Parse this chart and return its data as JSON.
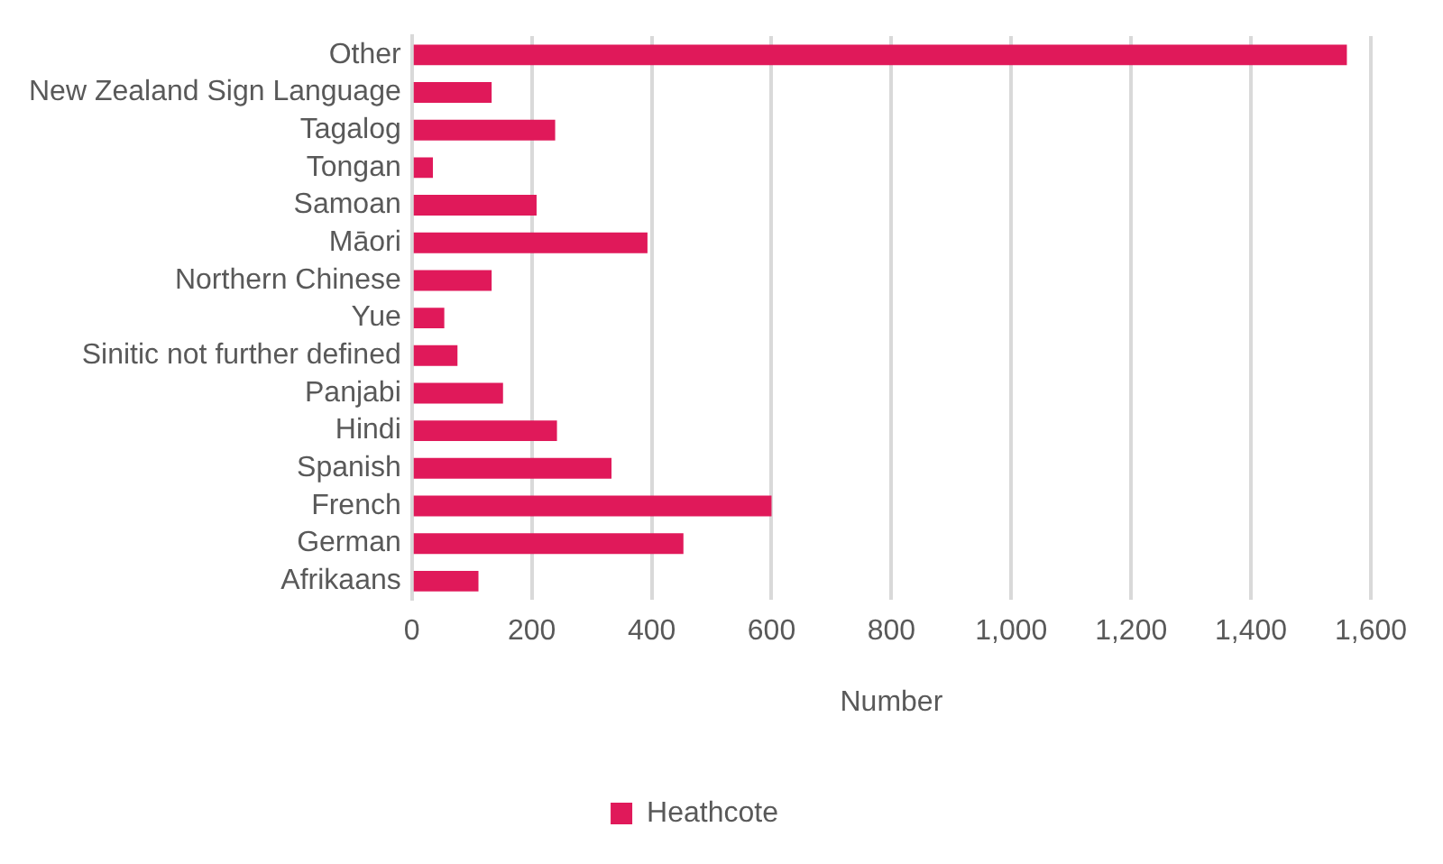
{
  "chart_data": {
    "type": "bar",
    "orientation": "horizontal",
    "xlabel": "Number",
    "categories": [
      "Other",
      "New Zealand Sign Language",
      "Tagalog",
      "Tongan",
      "Samoan",
      "Māori",
      "Northern Chinese",
      "Yue",
      "Sinitic not further defined",
      "Panjabi",
      "Hindi",
      "Spanish",
      "French",
      "German",
      "Afrikaans"
    ],
    "series": [
      {
        "name": "Heathcote",
        "color": "#e0195a",
        "values": [
          1560,
          133,
          239,
          35,
          208,
          393,
          133,
          54,
          76,
          152,
          242,
          333,
          600,
          453,
          111
        ]
      }
    ],
    "xlim": [
      0,
      1600
    ],
    "xticks": [
      0,
      {
        "value": 200,
        "label": "200"
      },
      {
        "value": 400,
        "label": "400"
      },
      {
        "value": 600,
        "label": "600"
      },
      {
        "value": 800,
        "label": "800"
      },
      {
        "value": 1000,
        "label": "1,000"
      },
      {
        "value": 1200,
        "label": "1,200"
      },
      {
        "value": 1400,
        "label": "1,400"
      },
      {
        "value": 1600,
        "label": "1,600"
      }
    ],
    "grid": "x",
    "legend": "bottom"
  }
}
